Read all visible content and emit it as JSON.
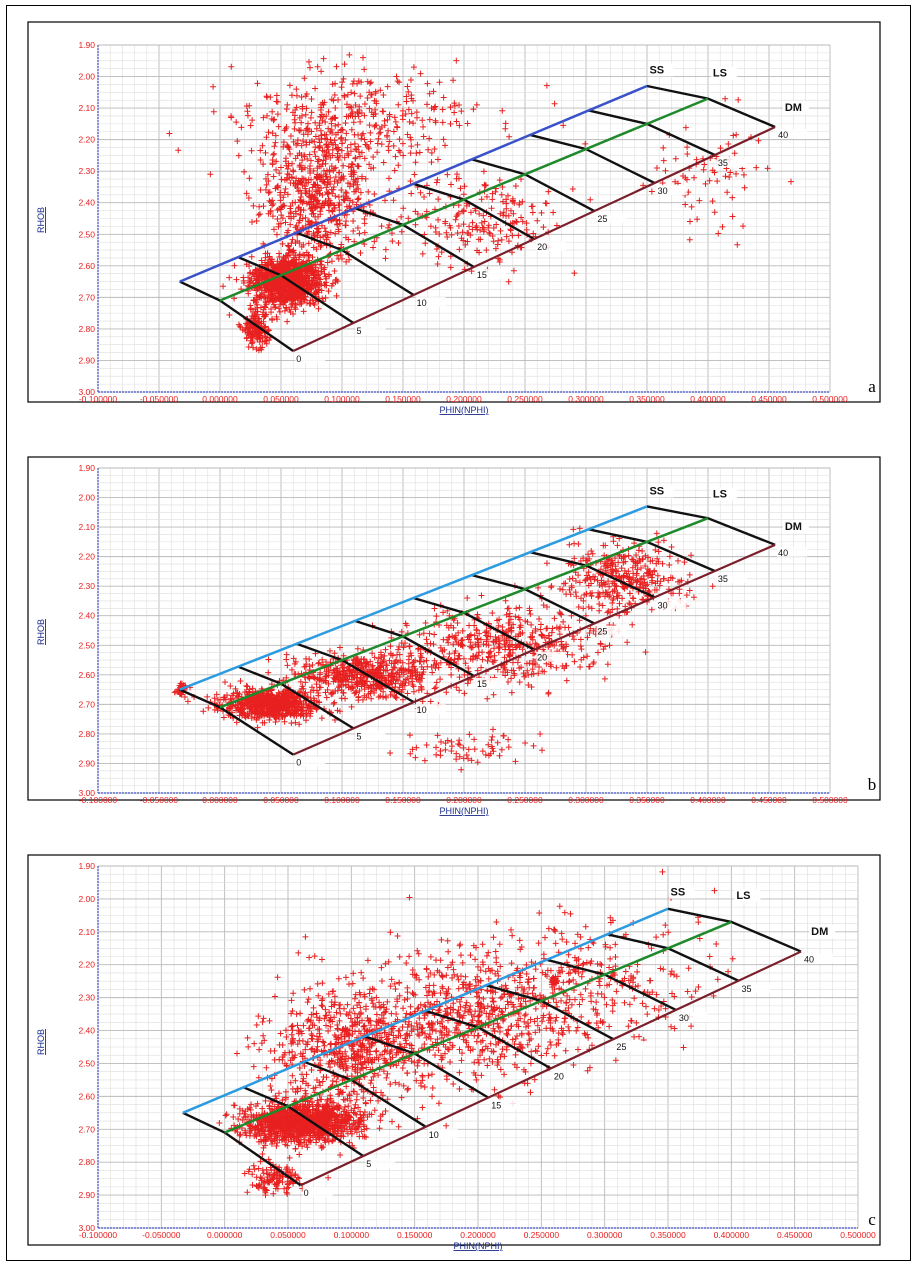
{
  "panels": [
    {
      "letter": "a"
    },
    {
      "letter": "b"
    },
    {
      "letter": "c"
    }
  ],
  "chart_data": [
    {
      "panel": "a",
      "type": "scatter",
      "xlabel": "PHIN(NPHI)",
      "ylabel": "RHOB",
      "xlim": [
        -0.1,
        0.5
      ],
      "ylim": [
        3.0,
        1.9
      ],
      "y_axis_reversed": true,
      "grid": true,
      "x_ticks": [
        "-0.100000",
        "-0.050000",
        "0.000000",
        "0.050000",
        "0.100000",
        "0.150000",
        "0.200000",
        "0.250000",
        "0.300000",
        "0.350000",
        "0.400000",
        "0.450000",
        "0.500000"
      ],
      "y_ticks": [
        "1.90",
        "2.00",
        "2.10",
        "2.20",
        "2.30",
        "2.40",
        "2.50",
        "2.60",
        "2.70",
        "2.80",
        "2.90",
        "3.00"
      ],
      "overlay": {
        "lithology_labels": [
          "SS",
          "LS",
          "DM"
        ],
        "porosity_labels": [
          "0",
          "5",
          "10",
          "15",
          "20",
          "25",
          "30",
          "35",
          "40"
        ],
        "sandstone_line_color": "#3a52c9",
        "limestone_line_color": "#1f8a2b",
        "dolomite_line_color": "#7a1f2a",
        "ss_line": [
          [
            -0.033,
            2.65
          ],
          [
            0.35,
            2.03
          ]
        ],
        "ls_line": [
          [
            0.0,
            2.71
          ],
          [
            0.4,
            2.07
          ]
        ],
        "dm_line": [
          [
            0.06,
            2.87
          ],
          [
            0.455,
            2.16
          ]
        ]
      },
      "points_color": "#e82020",
      "point_clusters": [
        {
          "center": [
            0.055,
            2.65
          ],
          "spread": [
            0.03,
            0.08
          ],
          "count": 1100
        },
        {
          "center": [
            0.03,
            2.8
          ],
          "spread": [
            0.012,
            0.06
          ],
          "count": 150
        },
        {
          "center": [
            0.08,
            2.38
          ],
          "spread": [
            0.045,
            0.2
          ],
          "count": 550
        },
        {
          "center": [
            0.11,
            2.15
          ],
          "spread": [
            0.1,
            0.18
          ],
          "count": 380
        },
        {
          "center": [
            0.21,
            2.45
          ],
          "spread": [
            0.08,
            0.14
          ],
          "count": 220
        },
        {
          "center": [
            0.4,
            2.3
          ],
          "spread": [
            0.05,
            0.2
          ],
          "count": 70
        }
      ]
    },
    {
      "panel": "b",
      "type": "scatter",
      "xlabel": "PHIN(NPHI)",
      "ylabel": "RHOB",
      "xlim": [
        -0.1,
        0.5
      ],
      "ylim": [
        3.0,
        1.9
      ],
      "y_axis_reversed": true,
      "grid": true,
      "x_ticks": [
        "-0.100000",
        "-0.050000",
        "0.000000",
        "0.050000",
        "0.100000",
        "0.150000",
        "0.200000",
        "0.250000",
        "0.300000",
        "0.350000",
        "0.400000",
        "0.450000",
        "0.500000"
      ],
      "y_ticks": [
        "1.90",
        "2.00",
        "2.10",
        "2.20",
        "2.30",
        "2.40",
        "2.50",
        "2.60",
        "2.70",
        "2.80",
        "2.90",
        "3.00"
      ],
      "overlay": {
        "lithology_labels": [
          "SS",
          "LS",
          "DM"
        ],
        "porosity_labels": [
          "0",
          "5",
          "10",
          "15",
          "20",
          "25",
          "30",
          "35",
          "40"
        ],
        "sandstone_line_color": "#2d9be0",
        "limestone_line_color": "#1f8a2b",
        "dolomite_line_color": "#7a1f2a",
        "ss_line": [
          [
            -0.033,
            2.65
          ],
          [
            0.35,
            2.03
          ]
        ],
        "ls_line": [
          [
            0.0,
            2.71
          ],
          [
            0.4,
            2.07
          ]
        ],
        "dm_line": [
          [
            0.06,
            2.87
          ],
          [
            0.455,
            2.16
          ]
        ]
      },
      "points_color": "#e82020",
      "point_clusters": [
        {
          "center": [
            0.04,
            2.7
          ],
          "spread": [
            0.04,
            0.05
          ],
          "count": 700
        },
        {
          "center": [
            0.12,
            2.6
          ],
          "spread": [
            0.06,
            0.08
          ],
          "count": 550
        },
        {
          "center": [
            0.23,
            2.5
          ],
          "spread": [
            0.08,
            0.13
          ],
          "count": 480
        },
        {
          "center": [
            0.33,
            2.28
          ],
          "spread": [
            0.05,
            0.12
          ],
          "count": 350
        },
        {
          "center": [
            -0.032,
            2.65
          ],
          "spread": [
            0.004,
            0.02
          ],
          "count": 40
        },
        {
          "center": [
            0.2,
            2.85
          ],
          "spread": [
            0.05,
            0.06
          ],
          "count": 60
        }
      ]
    },
    {
      "panel": "c",
      "type": "scatter",
      "xlabel": "PHIN(NPHI)",
      "ylabel": "RHOB",
      "xlim": [
        -0.1,
        0.5
      ],
      "ylim": [
        3.0,
        1.9
      ],
      "y_axis_reversed": true,
      "grid": true,
      "x_ticks": [
        "-0.100000",
        "-0.050000",
        "0.000000",
        "0.050000",
        "0.100000",
        "0.150000",
        "0.200000",
        "0.250000",
        "0.300000",
        "0.350000",
        "0.400000",
        "0.450000",
        "0.500000"
      ],
      "y_ticks": [
        "1.90",
        "2.00",
        "2.10",
        "2.20",
        "2.30",
        "2.40",
        "2.50",
        "2.60",
        "2.70",
        "2.80",
        "2.90",
        "3.00"
      ],
      "overlay": {
        "lithology_labels": [
          "SS",
          "LS",
          "DM"
        ],
        "porosity_labels": [
          "0",
          "5",
          "10",
          "15",
          "20",
          "25",
          "30",
          "35",
          "40"
        ],
        "sandstone_line_color": "#2d9be0",
        "limestone_line_color": "#1f8a2b",
        "dolomite_line_color": "#7a1f2a",
        "ss_line": [
          [
            -0.033,
            2.65
          ],
          [
            0.35,
            2.03
          ]
        ],
        "ls_line": [
          [
            0.0,
            2.71
          ],
          [
            0.4,
            2.07
          ]
        ],
        "dm_line": [
          [
            0.06,
            2.87
          ],
          [
            0.455,
            2.16
          ]
        ]
      },
      "points_color": "#e82020",
      "point_clusters": [
        {
          "center": [
            0.06,
            2.68
          ],
          "spread": [
            0.045,
            0.06
          ],
          "count": 1200
        },
        {
          "center": [
            0.1,
            2.45
          ],
          "spread": [
            0.06,
            0.2
          ],
          "count": 700
        },
        {
          "center": [
            0.2,
            2.35
          ],
          "spread": [
            0.08,
            0.2
          ],
          "count": 650
        },
        {
          "center": [
            0.3,
            2.25
          ],
          "spread": [
            0.08,
            0.2
          ],
          "count": 250
        },
        {
          "center": [
            0.04,
            2.85
          ],
          "spread": [
            0.02,
            0.05
          ],
          "count": 120
        },
        {
          "center": [
            0.26,
            2.25
          ],
          "spread": [
            0.002,
            0.01
          ],
          "count": 40
        }
      ]
    }
  ]
}
